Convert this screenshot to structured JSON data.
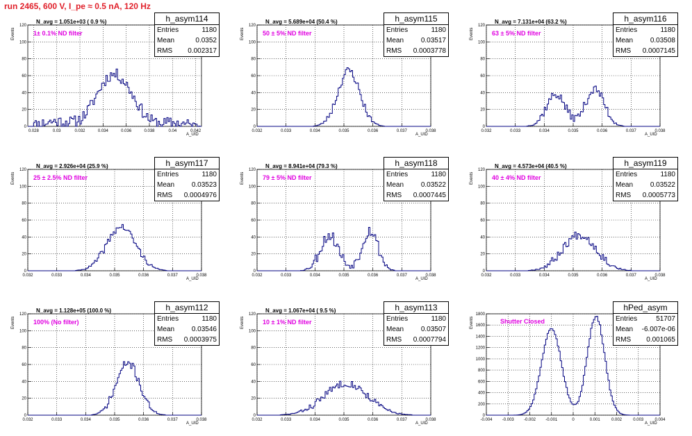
{
  "header": {
    "title": "run 2465,   600 V, I_pe ≈ 0.5 nA, 120 Hz"
  },
  "colors": {
    "title": "#e0202a",
    "hist": "#000080",
    "filter_text": "#e000e0"
  },
  "chart_data": [
    {
      "type": "bar",
      "hist_name": "h_asym114",
      "stats": {
        "entries": "1180",
        "mean": "0.0352",
        "rms": "0.002317"
      },
      "navg_text": "N_avg = 1.051e+03 ( 0.9 %)",
      "filter_text": "1± 0.1% ND filter",
      "xlabel": "A_UID",
      "ylabel": "Events",
      "xlim": [
        0.0275,
        0.0425
      ],
      "ylim": [
        0,
        120
      ],
      "xticks": [
        0.028,
        0.03,
        0.032,
        0.034,
        0.036,
        0.038,
        0.04,
        0.042
      ],
      "xtick_labels": [
        "0.028",
        "0.03",
        "0.032",
        "0.034",
        "0.036",
        "0.038",
        "0.04",
        "0.042"
      ],
      "yticks": [
        0,
        20,
        40,
        60,
        80,
        100,
        120
      ],
      "centers": [
        0.03,
        0.0335,
        0.0345,
        0.0355,
        0.0365,
        0.04
      ],
      "amps": [
        6,
        20,
        30,
        26,
        22,
        4
      ],
      "widths": [
        0.0012,
        0.001,
        0.0009,
        0.0009,
        0.001,
        0.0012
      ],
      "noise": 7,
      "seed": 11
    },
    {
      "type": "bar",
      "hist_name": "h_asym115",
      "stats": {
        "entries": "1180",
        "mean": "0.03517",
        "rms": "0.0003778"
      },
      "navg_text": "N_avg = 5.689e+04 (50.4 %)",
      "filter_text": "50 ± 5% ND filter",
      "xlabel": "A_UID",
      "ylabel": "Events",
      "xlim": [
        0.032,
        0.038
      ],
      "ylim": [
        0,
        120
      ],
      "xticks": [
        0.032,
        0.033,
        0.034,
        0.035,
        0.036,
        0.037,
        0.038
      ],
      "xtick_labels": [
        "0.032",
        "0.033",
        "0.034",
        "0.035",
        "0.036",
        "0.037",
        "0.038"
      ],
      "yticks": [
        0,
        20,
        40,
        60,
        80,
        100,
        120
      ],
      "centers": [
        0.03517
      ],
      "amps": [
        66
      ],
      "widths": [
        0.00038
      ],
      "noise": 5,
      "seed": 23
    },
    {
      "type": "bar",
      "hist_name": "h_asym116",
      "stats": {
        "entries": "1180",
        "mean": "0.03508",
        "rms": "0.0007145"
      },
      "navg_text": "N_avg = 7.131e+04 (63.2 %)",
      "filter_text": "63 ± 5% ND filter",
      "xlabel": "A_UID",
      "ylabel": "Events",
      "xlim": [
        0.032,
        0.038
      ],
      "ylim": [
        0,
        120
      ],
      "xticks": [
        0.032,
        0.033,
        0.034,
        0.035,
        0.036,
        0.037,
        0.038
      ],
      "xtick_labels": [
        "0.032",
        "0.033",
        "0.034",
        "0.035",
        "0.036",
        "0.037",
        "0.038"
      ],
      "yticks": [
        0,
        20,
        40,
        60,
        80,
        100,
        120
      ],
      "centers": [
        0.0344,
        0.03575
      ],
      "amps": [
        38,
        44
      ],
      "widths": [
        0.00033,
        0.00033
      ],
      "noise": 5,
      "seed": 37
    },
    {
      "type": "bar",
      "hist_name": "h_asym117",
      "stats": {
        "entries": "1180",
        "mean": "0.03523",
        "rms": "0.0004976"
      },
      "navg_text": "N_avg = 2.926e+04 (25.9 %)",
      "filter_text": "25 ± 2.5% ND filter",
      "xlabel": "A_UID",
      "ylabel": "Events",
      "xlim": [
        0.032,
        0.038
      ],
      "ylim": [
        0,
        120
      ],
      "xticks": [
        0.032,
        0.033,
        0.034,
        0.035,
        0.036,
        0.037,
        0.038
      ],
      "xtick_labels": [
        "0.032",
        "0.033",
        "0.034",
        "0.035",
        "0.036",
        "0.037",
        "0.038"
      ],
      "yticks": [
        0,
        20,
        40,
        60,
        80,
        100,
        120
      ],
      "centers": [
        0.03523
      ],
      "amps": [
        52
      ],
      "widths": [
        0.0005
      ],
      "noise": 4,
      "seed": 41
    },
    {
      "type": "bar",
      "hist_name": "h_asym118",
      "stats": {
        "entries": "1180",
        "mean": "0.03522",
        "rms": "0.0007445"
      },
      "navg_text": "N_avg = 8.941e+04 (79.3 %)",
      "filter_text": "79 ± 5% ND filter",
      "xlabel": "A_UID",
      "ylabel": "Events",
      "xlim": [
        0.032,
        0.038
      ],
      "ylim": [
        0,
        120
      ],
      "xticks": [
        0.032,
        0.033,
        0.034,
        0.035,
        0.036,
        0.037,
        0.038
      ],
      "xtick_labels": [
        "0.032",
        "0.033",
        "0.034",
        "0.035",
        "0.036",
        "0.037",
        "0.038"
      ],
      "yticks": [
        0,
        20,
        40,
        60,
        80,
        100,
        120
      ],
      "centers": [
        0.0345,
        0.0359
      ],
      "amps": [
        42,
        48
      ],
      "widths": [
        0.00032,
        0.00028
      ],
      "noise": 7,
      "seed": 53
    },
    {
      "type": "bar",
      "hist_name": "h_asym119",
      "stats": {
        "entries": "1180",
        "mean": "0.03522",
        "rms": "0.0005773"
      },
      "navg_text": "N_avg = 4.573e+04 (40.5 %)",
      "filter_text": "40 ± 4% ND filter",
      "xlabel": "A_UID",
      "ylabel": "Events",
      "xlim": [
        0.032,
        0.038
      ],
      "ylim": [
        0,
        120
      ],
      "xticks": [
        0.032,
        0.033,
        0.034,
        0.035,
        0.036,
        0.037,
        0.038
      ],
      "xtick_labels": [
        "0.032",
        "0.033",
        "0.034",
        "0.035",
        "0.036",
        "0.037",
        "0.038"
      ],
      "yticks": [
        0,
        20,
        40,
        60,
        80,
        100,
        120
      ],
      "centers": [
        0.03522
      ],
      "amps": [
        43
      ],
      "widths": [
        0.00058
      ],
      "noise": 5,
      "seed": 67
    },
    {
      "type": "bar",
      "hist_name": "h_asym112",
      "stats": {
        "entries": "1180",
        "mean": "0.03546",
        "rms": "0.0003975"
      },
      "navg_text": "N_avg = 1.128e+05 (100.0 %)",
      "filter_text": "100% (No filter)",
      "xlabel": "A_UID",
      "ylabel": "Events",
      "xlim": [
        0.032,
        0.038
      ],
      "ylim": [
        0,
        120
      ],
      "xticks": [
        0.032,
        0.033,
        0.034,
        0.035,
        0.036,
        0.037,
        0.038
      ],
      "xtick_labels": [
        "0.032",
        "0.033",
        "0.034",
        "0.035",
        "0.036",
        "0.037",
        "0.038"
      ],
      "yticks": [
        0,
        20,
        40,
        60,
        80,
        100,
        120
      ],
      "centers": [
        0.03546
      ],
      "amps": [
        62
      ],
      "widths": [
        0.0004
      ],
      "noise": 5,
      "seed": 71
    },
    {
      "type": "bar",
      "hist_name": "h_asym113",
      "stats": {
        "entries": "1180",
        "mean": "0.03507",
        "rms": "0.0007794"
      },
      "navg_text": "N_avg = 1.067e+04 ( 9.5 %)",
      "filter_text": "10 ± 1% ND filter",
      "xlabel": "A_UID",
      "ylabel": "Events",
      "xlim": [
        0.032,
        0.038
      ],
      "ylim": [
        0,
        120
      ],
      "xticks": [
        0.032,
        0.033,
        0.034,
        0.035,
        0.036,
        0.037,
        0.038
      ],
      "xtick_labels": [
        "0.032",
        "0.033",
        "0.034",
        "0.035",
        "0.036",
        "0.037",
        "0.038"
      ],
      "yticks": [
        0,
        20,
        40,
        60,
        80,
        100,
        120
      ],
      "centers": [
        0.03507
      ],
      "amps": [
        38
      ],
      "widths": [
        0.00075
      ],
      "noise": 4,
      "seed": 83
    },
    {
      "type": "bar",
      "hist_name": "hPed_asym",
      "stats": {
        "entries": "51707",
        "mean": "-6.007e-06",
        "rms": "0.001065"
      },
      "navg_text": "",
      "filter_text": "Shutter Closed",
      "xlabel": "A_UID",
      "ylabel": "Events",
      "xlim": [
        -0.004,
        0.004
      ],
      "ylim": [
        0,
        1800
      ],
      "xticks": [
        -0.004,
        -0.003,
        -0.002,
        -0.001,
        0,
        0.001,
        0.002,
        0.003,
        0.004
      ],
      "xtick_labels": [
        "-0.004",
        "-0.003",
        "-0.002",
        "-0.001",
        "0",
        "0.001",
        "0.002",
        "0.003",
        "0.004"
      ],
      "yticks": [
        0,
        200,
        400,
        600,
        800,
        1000,
        1200,
        1400,
        1600,
        1800
      ],
      "centers": [
        -0.001,
        0.00105
      ],
      "amps": [
        1560,
        1760
      ],
      "widths": [
        0.00045,
        0.0004
      ],
      "noise": 25,
      "seed": 97
    }
  ]
}
